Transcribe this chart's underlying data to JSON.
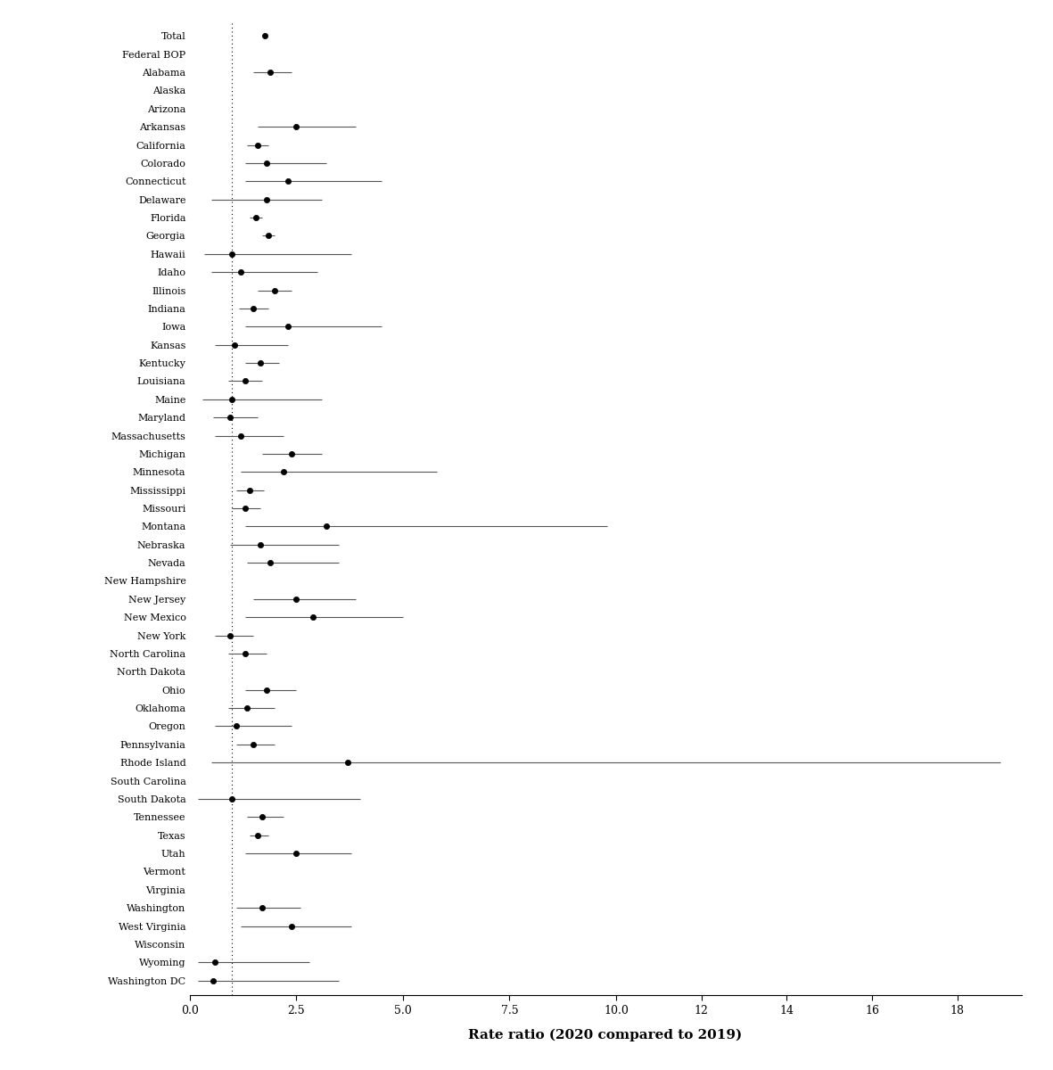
{
  "categories": [
    "Total",
    "Federal BOP",
    "Alabama",
    "Alaska",
    "Arizona",
    "Arkansas",
    "California",
    "Colorado",
    "Connecticut",
    "Delaware",
    "Florida",
    "Georgia",
    "Hawaii",
    "Idaho",
    "Illinois",
    "Indiana",
    "Iowa",
    "Kansas",
    "Kentucky",
    "Louisiana",
    "Maine",
    "Maryland",
    "Massachusetts",
    "Michigan",
    "Minnesota",
    "Mississippi",
    "Missouri",
    "Montana",
    "Nebraska",
    "Nevada",
    "New Hampshire",
    "New Jersey",
    "New Mexico",
    "New York",
    "North Carolina",
    "North Dakota",
    "Ohio",
    "Oklahoma",
    "Oregon",
    "Pennsylvania",
    "Rhode Island",
    "South Carolina",
    "South Dakota",
    "Tennessee",
    "Texas",
    "Utah",
    "Vermont",
    "Virginia",
    "Washington",
    "West Virginia",
    "Wisconsin",
    "Wyoming",
    "Washington DC"
  ],
  "point_estimates": [
    1.77,
    null,
    1.9,
    null,
    null,
    2.5,
    1.6,
    1.8,
    2.3,
    1.8,
    1.55,
    1.85,
    1.0,
    1.2,
    2.0,
    1.5,
    2.3,
    1.05,
    1.65,
    1.3,
    1.0,
    0.95,
    1.2,
    2.4,
    2.2,
    1.4,
    1.3,
    3.2,
    1.65,
    1.9,
    null,
    2.5,
    2.9,
    0.95,
    1.3,
    null,
    1.8,
    1.35,
    1.1,
    1.5,
    3.7,
    null,
    1.0,
    1.7,
    1.6,
    2.5,
    null,
    null,
    1.7,
    2.4,
    null,
    0.6,
    0.55
  ],
  "ci_low": [
    1.77,
    null,
    1.5,
    null,
    null,
    1.6,
    1.35,
    1.3,
    1.3,
    0.5,
    1.4,
    1.7,
    0.35,
    0.5,
    1.6,
    1.15,
    1.3,
    0.6,
    1.3,
    0.9,
    0.3,
    0.55,
    0.6,
    1.7,
    1.2,
    1.1,
    1.0,
    1.3,
    0.95,
    1.35,
    null,
    1.5,
    1.3,
    0.6,
    0.9,
    null,
    1.3,
    0.9,
    0.6,
    1.1,
    0.5,
    null,
    0.2,
    1.35,
    1.4,
    1.3,
    null,
    null,
    1.1,
    1.2,
    null,
    0.2,
    0.2
  ],
  "ci_high": [
    1.77,
    null,
    2.4,
    null,
    null,
    3.9,
    1.85,
    3.2,
    4.5,
    3.1,
    1.7,
    2.0,
    3.8,
    3.0,
    2.4,
    1.85,
    4.5,
    2.3,
    2.1,
    1.7,
    3.1,
    1.6,
    2.2,
    3.1,
    5.8,
    1.75,
    1.65,
    9.8,
    3.5,
    3.5,
    null,
    3.9,
    5.0,
    1.5,
    1.8,
    null,
    2.5,
    2.0,
    2.4,
    2.0,
    19.0,
    null,
    4.0,
    2.2,
    1.85,
    3.8,
    null,
    null,
    2.6,
    3.8,
    null,
    2.8,
    3.5
  ],
  "vline_x": 1.0,
  "xlabel": "Rate ratio (2020 compared to 2019)",
  "xlim": [
    0.0,
    19.5
  ],
  "xticks": [
    0.0,
    2.5,
    5.0,
    7.5,
    10.0,
    12.0,
    14.0,
    16.0,
    18.0
  ],
  "xticklabels": [
    "0.0",
    "2.5",
    "5.0",
    "7.5",
    "10.0",
    "12",
    "14",
    "16",
    "18"
  ],
  "figsize": [
    11.81,
    12.0
  ],
  "dpi": 100
}
